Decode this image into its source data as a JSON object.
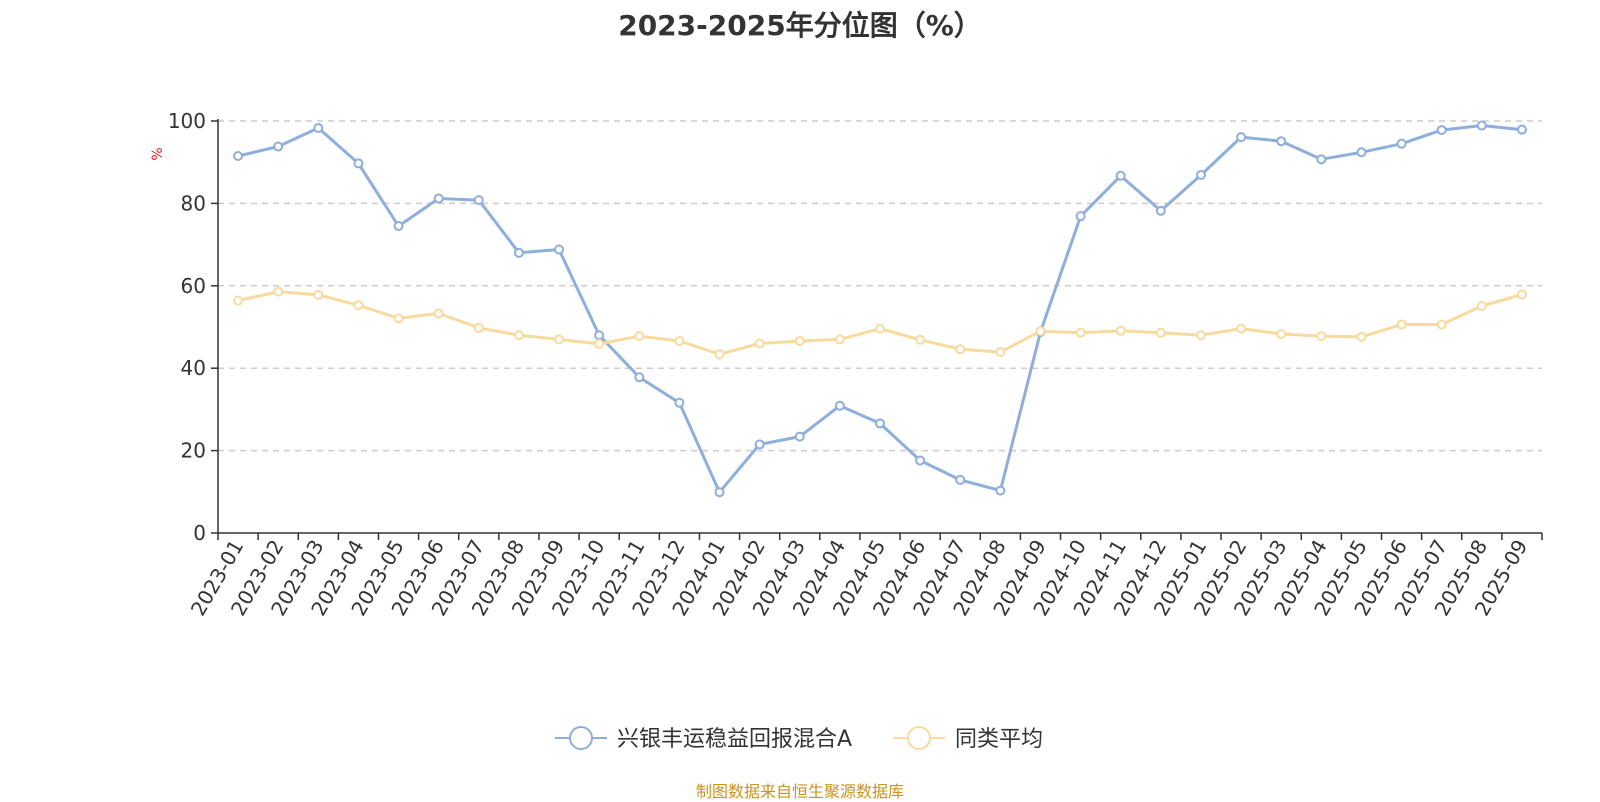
{
  "chart_data": {
    "type": "line",
    "title": "2023-2025年分位图（%）",
    "ylabel": "%",
    "xlabel": "",
    "ylim": [
      0,
      100
    ],
    "yticks": [
      0,
      20,
      40,
      60,
      80,
      100
    ],
    "grid": "horizontal-dashed",
    "legend_position": "bottom-center",
    "categories": [
      "2023-01",
      "2023-02",
      "2023-03",
      "2023-04",
      "2023-05",
      "2023-06",
      "2023-07",
      "2023-08",
      "2023-09",
      "2023-10",
      "2023-11",
      "2023-12",
      "2024-01",
      "2024-02",
      "2024-03",
      "2024-04",
      "2024-05",
      "2024-06",
      "2024-07",
      "2024-08",
      "2024-09",
      "2024-10",
      "2024-11",
      "2024-12",
      "2025-01",
      "2025-02",
      "2025-03",
      "2025-04",
      "2025-05",
      "2025-06",
      "2025-07",
      "2025-08",
      "2025-09"
    ],
    "series": [
      {
        "name": "兴银丰运稳益回报混合A",
        "color": "#8eaedb",
        "values": [
          91.5,
          93.8,
          98.3,
          89.7,
          74.5,
          81.2,
          80.8,
          68.0,
          68.8,
          48.0,
          37.8,
          31.6,
          9.9,
          21.5,
          23.4,
          30.9,
          26.6,
          17.6,
          12.9,
          10.3,
          48.8,
          76.9,
          86.7,
          78.2,
          86.9,
          96.1,
          95.1,
          90.7,
          92.4,
          94.5,
          97.8,
          98.9,
          97.9
        ]
      },
      {
        "name": "同类平均",
        "color": "#f9da9e",
        "values": [
          56.4,
          58.6,
          57.8,
          55.3,
          52.1,
          53.3,
          49.8,
          48.0,
          47.0,
          45.9,
          47.8,
          46.6,
          43.4,
          46.0,
          46.6,
          47.0,
          49.6,
          46.9,
          44.6,
          43.9,
          49.0,
          48.6,
          49.1,
          48.6,
          48.0,
          49.6,
          48.3,
          47.8,
          47.6,
          50.6,
          50.6,
          55.1,
          57.9
        ]
      }
    ]
  },
  "source_note": "制图数据来自恒生聚源数据库"
}
